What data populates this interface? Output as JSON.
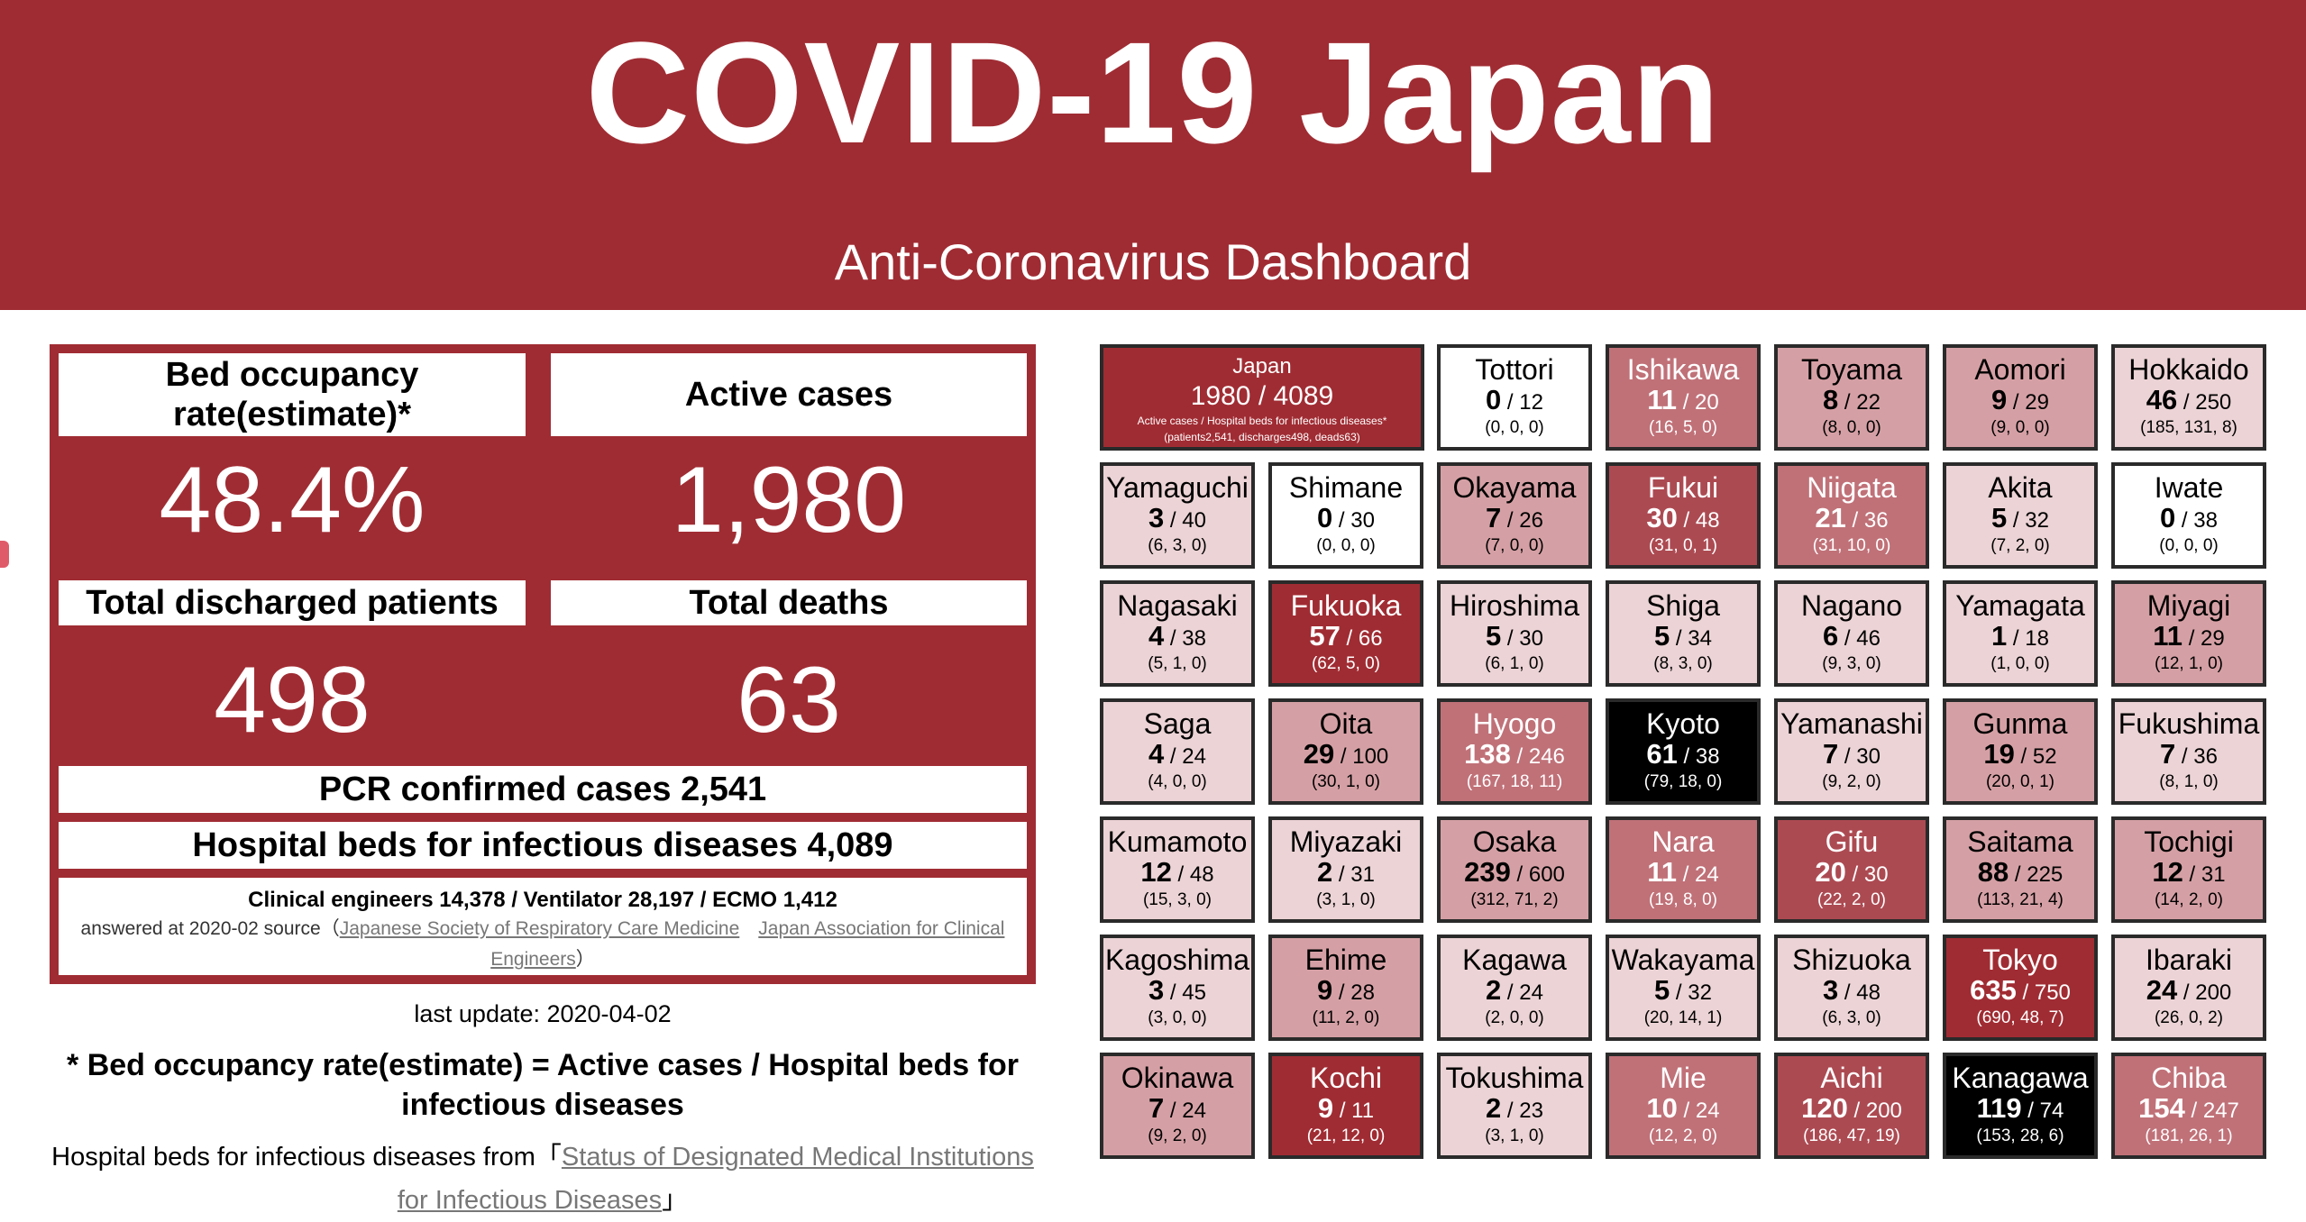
{
  "header": {
    "title": "COVID-19 Japan",
    "subtitle": "Anti-Coronavirus Dashboard"
  },
  "summary": {
    "bed_label": "Bed occupancy rate(estimate)*",
    "bed_value": "48.4%",
    "active_label": "Active cases",
    "active_value": "1,980",
    "discharged_label": "Total discharged patients",
    "discharged_value": "498",
    "deaths_label": "Total deaths",
    "deaths_value": "63",
    "pcr": "PCR confirmed cases 2,541",
    "beds": "Hospital beds for infectious diseases 4,089",
    "engineers": "Clinical engineers 14,378 / Ventilator 28,197 / ECMO 1,412",
    "answered_prefix": "answered at 2020-02 source（",
    "source_link1": "Japanese Society of Respiratory Care Medicine",
    "source_link2": "Japan Association for Clinical Engineers",
    "answered_suffix": "）"
  },
  "footer": {
    "last_update": "last update: 2020-04-02",
    "formula": "* Bed occupancy rate(estimate) = Active cases / Hospital beds for infectious diseases",
    "source_prefix": "Hospital beds for infectious diseases from「",
    "source_link": "Status of Designated Medical Institutions for Infectious Diseases",
    "source_suffix": "」"
  },
  "japan_tile": {
    "name": "Japan",
    "value": "1980 / 4089",
    "caption": "Active cases / Hospital beds for infectious diseases*",
    "detail": "(patients2,541, discharges498, deads63)"
  },
  "prefectures": [
    {
      "name": "Tottori",
      "active": "0",
      "beds": "12",
      "detail": "(0, 0, 0)",
      "level": 0
    },
    {
      "name": "Ishikawa",
      "active": "11",
      "beds": "20",
      "detail": "(16, 5, 0)",
      "level": 3
    },
    {
      "name": "Toyama",
      "active": "8",
      "beds": "22",
      "detail": "(8, 0, 0)",
      "level": 2
    },
    {
      "name": "Aomori",
      "active": "9",
      "beds": "29",
      "detail": "(9, 0, 0)",
      "level": 2
    },
    {
      "name": "Hokkaido",
      "active": "46",
      "beds": "250",
      "detail": "(185, 131, 8)",
      "level": 1
    },
    {
      "name": "Yamaguchi",
      "active": "3",
      "beds": "40",
      "detail": "(6, 3, 0)",
      "level": 1
    },
    {
      "name": "Shimane",
      "active": "0",
      "beds": "30",
      "detail": "(0, 0, 0)",
      "level": 0
    },
    {
      "name": "Okayama",
      "active": "7",
      "beds": "26",
      "detail": "(7, 0, 0)",
      "level": 2
    },
    {
      "name": "Fukui",
      "active": "30",
      "beds": "48",
      "detail": "(31, 0, 1)",
      "level": 4
    },
    {
      "name": "Niigata",
      "active": "21",
      "beds": "36",
      "detail": "(31, 10, 0)",
      "level": 3
    },
    {
      "name": "Akita",
      "active": "5",
      "beds": "32",
      "detail": "(7, 2, 0)",
      "level": 1
    },
    {
      "name": "Iwate",
      "active": "0",
      "beds": "38",
      "detail": "(0, 0, 0)",
      "level": 0
    },
    {
      "name": "Nagasaki",
      "active": "4",
      "beds": "38",
      "detail": "(5, 1, 0)",
      "level": 1
    },
    {
      "name": "Fukuoka",
      "active": "57",
      "beds": "66",
      "detail": "(62, 5, 0)",
      "level": 5
    },
    {
      "name": "Hiroshima",
      "active": "5",
      "beds": "30",
      "detail": "(6, 1, 0)",
      "level": 1
    },
    {
      "name": "Shiga",
      "active": "5",
      "beds": "34",
      "detail": "(8, 3, 0)",
      "level": 1
    },
    {
      "name": "Nagano",
      "active": "6",
      "beds": "46",
      "detail": "(9, 3, 0)",
      "level": 1
    },
    {
      "name": "Yamagata",
      "active": "1",
      "beds": "18",
      "detail": "(1, 0, 0)",
      "level": 1
    },
    {
      "name": "Miyagi",
      "active": "11",
      "beds": "29",
      "detail": "(12, 1, 0)",
      "level": 2
    },
    {
      "name": "Saga",
      "active": "4",
      "beds": "24",
      "detail": "(4, 0, 0)",
      "level": 1
    },
    {
      "name": "Oita",
      "active": "29",
      "beds": "100",
      "detail": "(30, 1, 0)",
      "level": 2
    },
    {
      "name": "Hyogo",
      "active": "138",
      "beds": "246",
      "detail": "(167, 18, 11)",
      "level": 3
    },
    {
      "name": "Kyoto",
      "active": "61",
      "beds": "38",
      "detail": "(79, 18, 0)",
      "level": 6
    },
    {
      "name": "Yamanashi",
      "active": "7",
      "beds": "30",
      "detail": "(9, 2, 0)",
      "level": 1
    },
    {
      "name": "Gunma",
      "active": "19",
      "beds": "52",
      "detail": "(20, 0, 1)",
      "level": 2
    },
    {
      "name": "Fukushima",
      "active": "7",
      "beds": "36",
      "detail": "(8, 1, 0)",
      "level": 1
    },
    {
      "name": "Kumamoto",
      "active": "12",
      "beds": "48",
      "detail": "(15, 3, 0)",
      "level": 1
    },
    {
      "name": "Miyazaki",
      "active": "2",
      "beds": "31",
      "detail": "(3, 1, 0)",
      "level": 1
    },
    {
      "name": "Osaka",
      "active": "239",
      "beds": "600",
      "detail": "(312, 71, 2)",
      "level": 2
    },
    {
      "name": "Nara",
      "active": "11",
      "beds": "24",
      "detail": "(19, 8, 0)",
      "level": 3
    },
    {
      "name": "Gifu",
      "active": "20",
      "beds": "30",
      "detail": "(22, 2, 0)",
      "level": 4
    },
    {
      "name": "Saitama",
      "active": "88",
      "beds": "225",
      "detail": "(113, 21, 4)",
      "level": 2
    },
    {
      "name": "Tochigi",
      "active": "12",
      "beds": "31",
      "detail": "(14, 2, 0)",
      "level": 2
    },
    {
      "name": "Kagoshima",
      "active": "3",
      "beds": "45",
      "detail": "(3, 0, 0)",
      "level": 1
    },
    {
      "name": "Ehime",
      "active": "9",
      "beds": "28",
      "detail": "(11, 2, 0)",
      "level": 2
    },
    {
      "name": "Kagawa",
      "active": "2",
      "beds": "24",
      "detail": "(2, 0, 0)",
      "level": 1
    },
    {
      "name": "Wakayama",
      "active": "5",
      "beds": "32",
      "detail": "(20, 14, 1)",
      "level": 1
    },
    {
      "name": "Shizuoka",
      "active": "3",
      "beds": "48",
      "detail": "(6, 3, 0)",
      "level": 1
    },
    {
      "name": "Tokyo",
      "active": "635",
      "beds": "750",
      "detail": "(690, 48, 7)",
      "level": 5
    },
    {
      "name": "Ibaraki",
      "active": "24",
      "beds": "200",
      "detail": "(26, 0, 2)",
      "level": 1
    },
    {
      "name": "Okinawa",
      "active": "7",
      "beds": "24",
      "detail": "(9, 2, 0)",
      "level": 2
    },
    {
      "name": "Kochi",
      "active": "9",
      "beds": "11",
      "detail": "(21, 12, 0)",
      "level": 5
    },
    {
      "name": "Tokushima",
      "active": "2",
      "beds": "23",
      "detail": "(3, 1, 0)",
      "level": 1
    },
    {
      "name": "Mie",
      "active": "10",
      "beds": "24",
      "detail": "(12, 2, 0)",
      "level": 3
    },
    {
      "name": "Aichi",
      "active": "120",
      "beds": "200",
      "detail": "(186, 47, 19)",
      "level": 4
    },
    {
      "name": "Kanagawa",
      "active": "119",
      "beds": "74",
      "detail": "(153, 28, 6)",
      "level": 6
    },
    {
      "name": "Chiba",
      "active": "154",
      "beds": "247",
      "detail": "(181, 26, 1)",
      "level": 3
    }
  ],
  "colors": {
    "brand": "#a02c33",
    "levels": [
      "#ffffff",
      "#ecd3d5",
      "#d5a0a5",
      "#c07178",
      "#ac4a52",
      "#a02c33",
      "#000000"
    ]
  }
}
